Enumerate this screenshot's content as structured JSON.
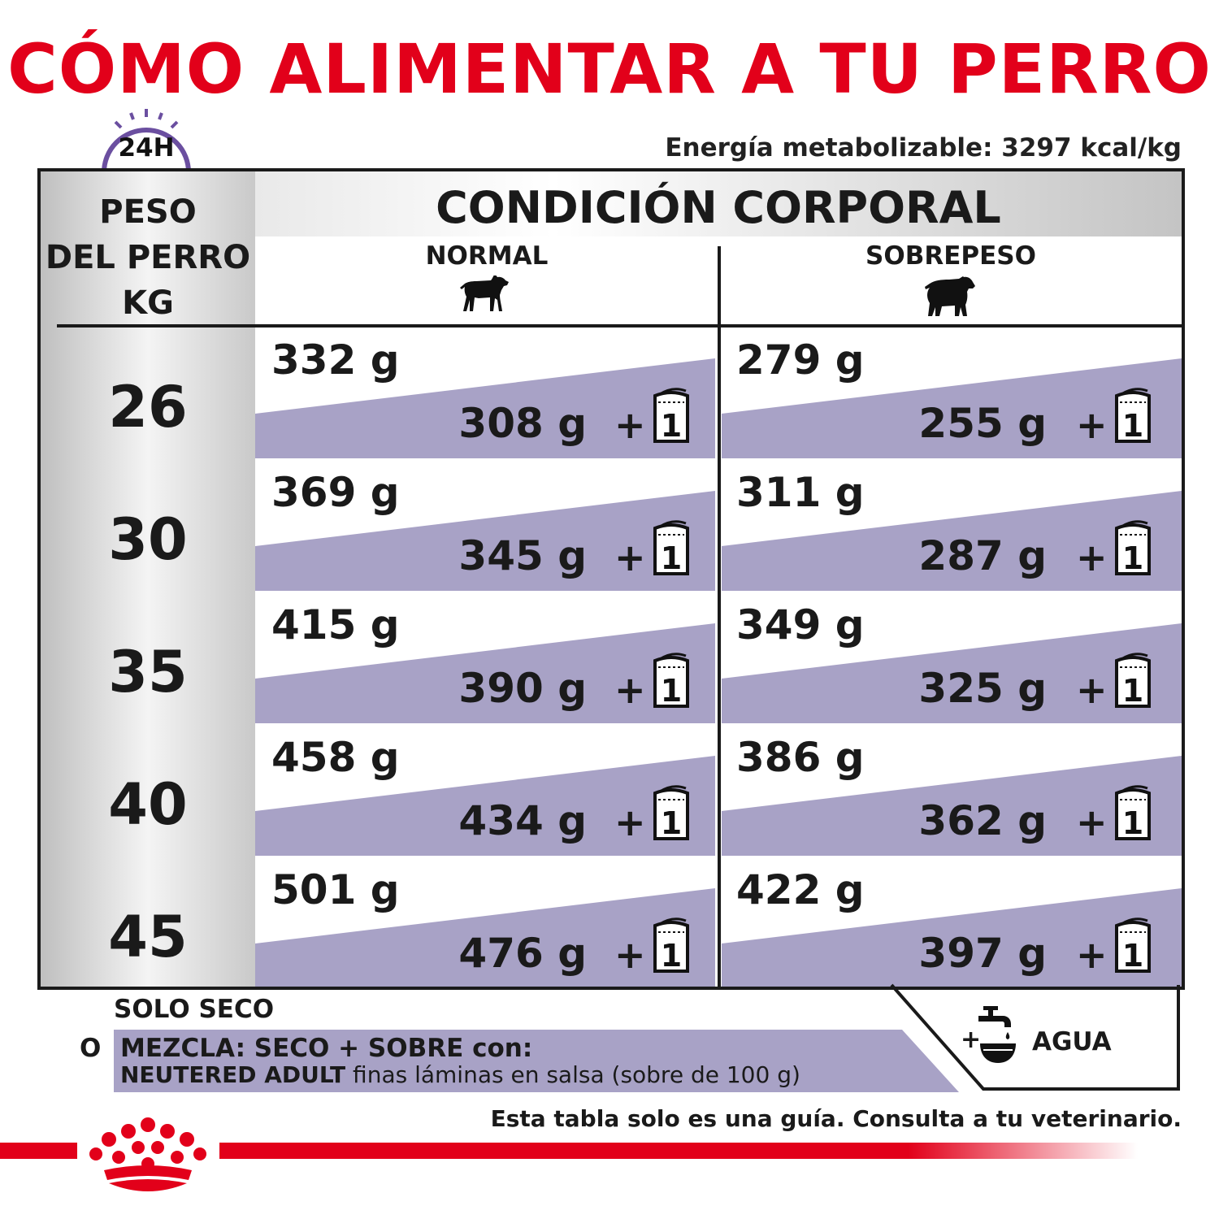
{
  "title": "CÓMO ALIMENTAR A TU PERRO",
  "energy": "Energía metabolizable: 3297 kcal/kg",
  "clock_label": "24H",
  "table": {
    "weight_header": [
      "PESO",
      "DEL PERRO",
      "KG"
    ],
    "condition_header": "CONDICIÓN CORPORAL",
    "columns": [
      "NORMAL",
      "SOBREPESO"
    ],
    "rows": [
      {
        "kg": "26",
        "normal_dry": "332 g",
        "normal_mix": "308 g",
        "over_dry": "279 g",
        "over_mix": "255 g"
      },
      {
        "kg": "30",
        "normal_dry": "369 g",
        "normal_mix": "345 g",
        "over_dry": "311 g",
        "over_mix": "287 g"
      },
      {
        "kg": "35",
        "normal_dry": "415 g",
        "normal_mix": "390 g",
        "over_dry": "349 g",
        "over_mix": "325 g"
      },
      {
        "kg": "40",
        "normal_dry": "458 g",
        "normal_mix": "434 g",
        "over_dry": "386 g",
        "over_mix": "362 g"
      },
      {
        "kg": "45",
        "normal_dry": "501 g",
        "normal_mix": "476 g",
        "over_dry": "422 g",
        "over_mix": "397 g"
      }
    ],
    "plus": "+",
    "pouch_count": "1"
  },
  "legend": {
    "dry_only": "SOLO SECO",
    "or": "O",
    "mix_line1": "MEZCLA: SECO + SOBRE con:",
    "mix_line2_bold": "NEUTERED ADULT",
    "mix_line2_rest": " finas láminas en salsa (sobre de 100 g)",
    "water_plus": "+",
    "water": "AGUA"
  },
  "footer_note": "Esta tabla solo es una guía. Consulta a tu veterinario.",
  "colors": {
    "brand_red": "#e2001a",
    "lavender": "#a8a2c6",
    "clock_purple": "#6b4fa0",
    "header_grey": "#c8c8c8"
  }
}
